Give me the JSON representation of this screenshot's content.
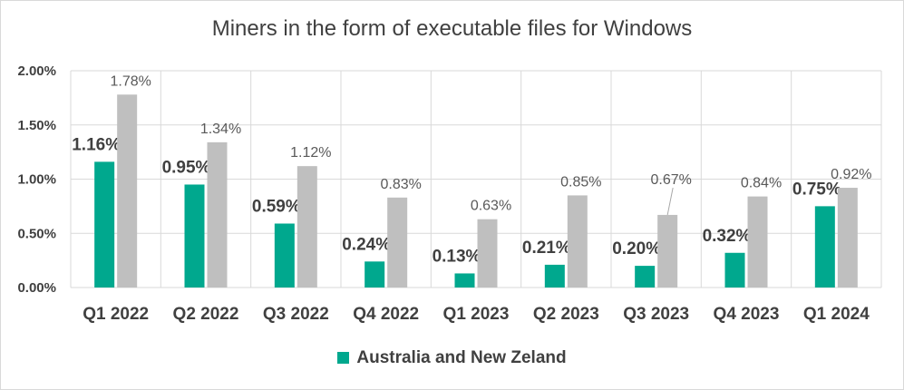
{
  "chart_data": {
    "type": "bar",
    "title": "Miners in the form of executable files for Windows",
    "categories": [
      "Q1 2022",
      "Q2 2022",
      "Q3 2022",
      "Q4 2022",
      "Q1 2023",
      "Q2 2023",
      "Q3 2023",
      "Q4 2023",
      "Q1 2024"
    ],
    "series": [
      {
        "name": "Australia and New Zeland",
        "color": "#00a88e",
        "values": [
          1.16,
          0.95,
          0.59,
          0.24,
          0.13,
          0.21,
          0.2,
          0.32,
          0.75
        ],
        "labels": [
          "1.16%",
          "0.95%",
          "0.59%",
          "0.24%",
          "0.13%",
          "0.21%",
          "0.20%",
          "0.32%",
          "0.75%"
        ]
      },
      {
        "color": "#bfbfbf",
        "values": [
          1.78,
          1.34,
          1.12,
          0.83,
          0.63,
          0.85,
          0.67,
          0.84,
          0.92
        ],
        "labels": [
          "1.78%",
          "1.34%",
          "1.12%",
          "0.83%",
          "0.63%",
          "0.85%",
          "0.67%",
          "0.84%",
          "0.92%"
        ]
      }
    ],
    "y_ticks": [
      "0.00%",
      "0.50%",
      "1.00%",
      "1.50%",
      "2.00%"
    ],
    "ylim": [
      0,
      2
    ],
    "grid": true,
    "legend_position": "bottom"
  }
}
